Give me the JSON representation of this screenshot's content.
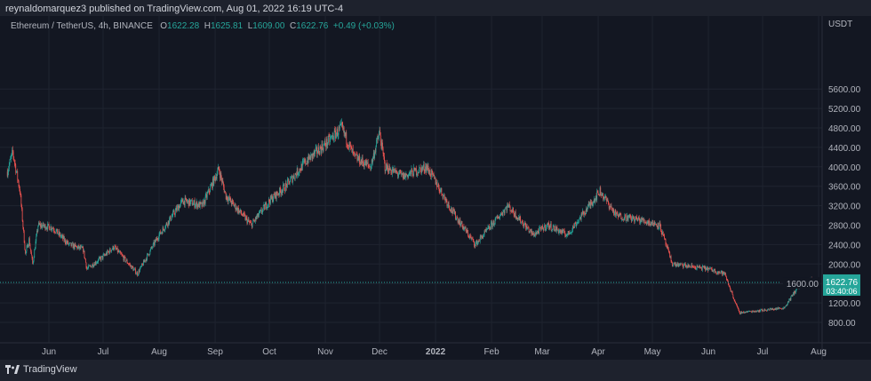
{
  "header": {
    "publish_text": "reynaldomarquez3 published on TradingView.com, Aug 01, 2022 16:19 UTC-4"
  },
  "legend": {
    "symbol": "Ethereum / TetherUS, 4h, BINANCE",
    "open_label": "O",
    "open": "1622.28",
    "high_label": "H",
    "high": "1625.81",
    "low_label": "L",
    "low": "1609.00",
    "close_label": "C",
    "close": "1622.76",
    "change": "+0.49 (+0.03%)"
  },
  "price_axis": {
    "currency": "USDT",
    "last_price": "1622.76",
    "countdown": "03:40:06"
  },
  "footer": {
    "brand": "TradingView",
    "logo_icon": "tradingview-logo-icon"
  },
  "colors": {
    "up": "#26a69a",
    "down": "#ef5350",
    "background": "#131722",
    "badge": "#26a69a"
  },
  "chart_data": {
    "type": "candlestick",
    "y_ticks": [
      800,
      1200,
      1600,
      2000,
      2400,
      2800,
      3200,
      3600,
      4000,
      4400,
      4800,
      5200,
      5600
    ],
    "y_tick_labels": [
      "800.00",
      "1200.00",
      "1600.00",
      "2000.00",
      "2400.00",
      "2800.00",
      "3200.00",
      "3600.00",
      "4000.00",
      "4400.00",
      "4800.00",
      "5200.00",
      "5600.00"
    ],
    "x_ticks": [
      {
        "date": "2021-06-01",
        "label": "Jun"
      },
      {
        "date": "2021-07-01",
        "label": "Jul"
      },
      {
        "date": "2021-08-01",
        "label": "Aug"
      },
      {
        "date": "2021-09-01",
        "label": "Sep"
      },
      {
        "date": "2021-10-01",
        "label": "Oct"
      },
      {
        "date": "2021-11-01",
        "label": "Nov"
      },
      {
        "date": "2021-12-01",
        "label": "Dec"
      },
      {
        "date": "2022-01-01",
        "label": "2022"
      },
      {
        "date": "2022-02-01",
        "label": "Feb"
      },
      {
        "date": "2022-03-01",
        "label": "Mar"
      },
      {
        "date": "2022-04-01",
        "label": "Apr"
      },
      {
        "date": "2022-05-01",
        "label": "May"
      },
      {
        "date": "2022-06-01",
        "label": "Jun"
      },
      {
        "date": "2022-07-01",
        "label": "Jul"
      },
      {
        "date": "2022-08-01",
        "label": "Aug"
      }
    ],
    "price_path": [
      [
        "2021-05-09",
        3900
      ],
      [
        "2021-05-12",
        4300
      ],
      [
        "2021-05-16",
        3500
      ],
      [
        "2021-05-19",
        2200
      ],
      [
        "2021-05-21",
        2500
      ],
      [
        "2021-05-23",
        2000
      ],
      [
        "2021-05-26",
        2800
      ],
      [
        "2021-06-03",
        2750
      ],
      [
        "2021-06-12",
        2400
      ],
      [
        "2021-06-20",
        2300
      ],
      [
        "2021-06-22",
        1900
      ],
      [
        "2021-07-01",
        2150
      ],
      [
        "2021-07-07",
        2350
      ],
      [
        "2021-07-20",
        1800
      ],
      [
        "2021-08-01",
        2600
      ],
      [
        "2021-08-14",
        3300
      ],
      [
        "2021-08-25",
        3200
      ],
      [
        "2021-09-03",
        3950
      ],
      [
        "2021-09-07",
        3400
      ],
      [
        "2021-09-21",
        2800
      ],
      [
        "2021-10-01",
        3300
      ],
      [
        "2021-10-10",
        3600
      ],
      [
        "2021-10-21",
        4100
      ],
      [
        "2021-11-02",
        4500
      ],
      [
        "2021-11-10",
        4800
      ],
      [
        "2021-11-17",
        4200
      ],
      [
        "2021-11-26",
        4000
      ],
      [
        "2021-12-01",
        4700
      ],
      [
        "2021-12-04",
        4000
      ],
      [
        "2021-12-14",
        3800
      ],
      [
        "2021-12-27",
        4000
      ],
      [
        "2022-01-01",
        3700
      ],
      [
        "2022-01-10",
        3100
      ],
      [
        "2022-01-23",
        2400
      ],
      [
        "2022-02-10",
        3200
      ],
      [
        "2022-02-24",
        2600
      ],
      [
        "2022-03-04",
        2800
      ],
      [
        "2022-03-15",
        2600
      ],
      [
        "2022-04-02",
        3500
      ],
      [
        "2022-04-11",
        3000
      ],
      [
        "2022-04-25",
        2900
      ],
      [
        "2022-05-05",
        2800
      ],
      [
        "2022-05-12",
        2000
      ],
      [
        "2022-06-01",
        1900
      ],
      [
        "2022-06-10",
        1800
      ],
      [
        "2022-06-18",
        1000
      ],
      [
        "2022-07-01",
        1050
      ],
      [
        "2022-07-13",
        1100
      ],
      [
        "2022-07-20",
        1500
      ],
      [
        "2022-07-28",
        1700
      ],
      [
        "2022-08-01",
        1622.76
      ]
    ]
  }
}
